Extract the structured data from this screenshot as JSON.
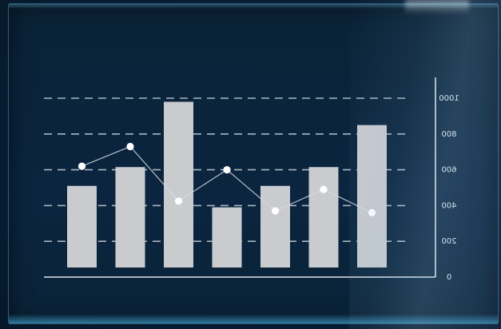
{
  "chart_data": {
    "type": "bar",
    "title": "",
    "xlabel": "",
    "ylabel": "",
    "ylim": [
      0,
      1000
    ],
    "y_ticks": [
      {
        "value": 0,
        "label": "0"
      },
      {
        "value": 200,
        "label": "200"
      },
      {
        "value": 400,
        "label": "400"
      },
      {
        "value": 600,
        "label": "600"
      },
      {
        "value": 800,
        "label": "800"
      },
      {
        "value": 1000,
        "label": "1000"
      }
    ],
    "tick_labels_mirrored": true,
    "grid": true,
    "grid_style": "dashed",
    "y_axis_side": "right",
    "categories": [
      "",
      "",
      "",
      "",
      "",
      "",
      ""
    ],
    "series": [
      {
        "kind": "bar",
        "values": [
          510,
          615,
          980,
          390,
          510,
          615,
          850
        ]
      },
      {
        "kind": "line",
        "values": [
          620,
          730,
          425,
          600,
          370,
          490,
          360
        ]
      }
    ],
    "colors": {
      "bar": "#c9cbcf",
      "line": "#d8dde2",
      "point": "#ffffff",
      "grid": "#c7d0d8",
      "axis": "#dfe5ea",
      "text": "#e6ebf0"
    }
  }
}
